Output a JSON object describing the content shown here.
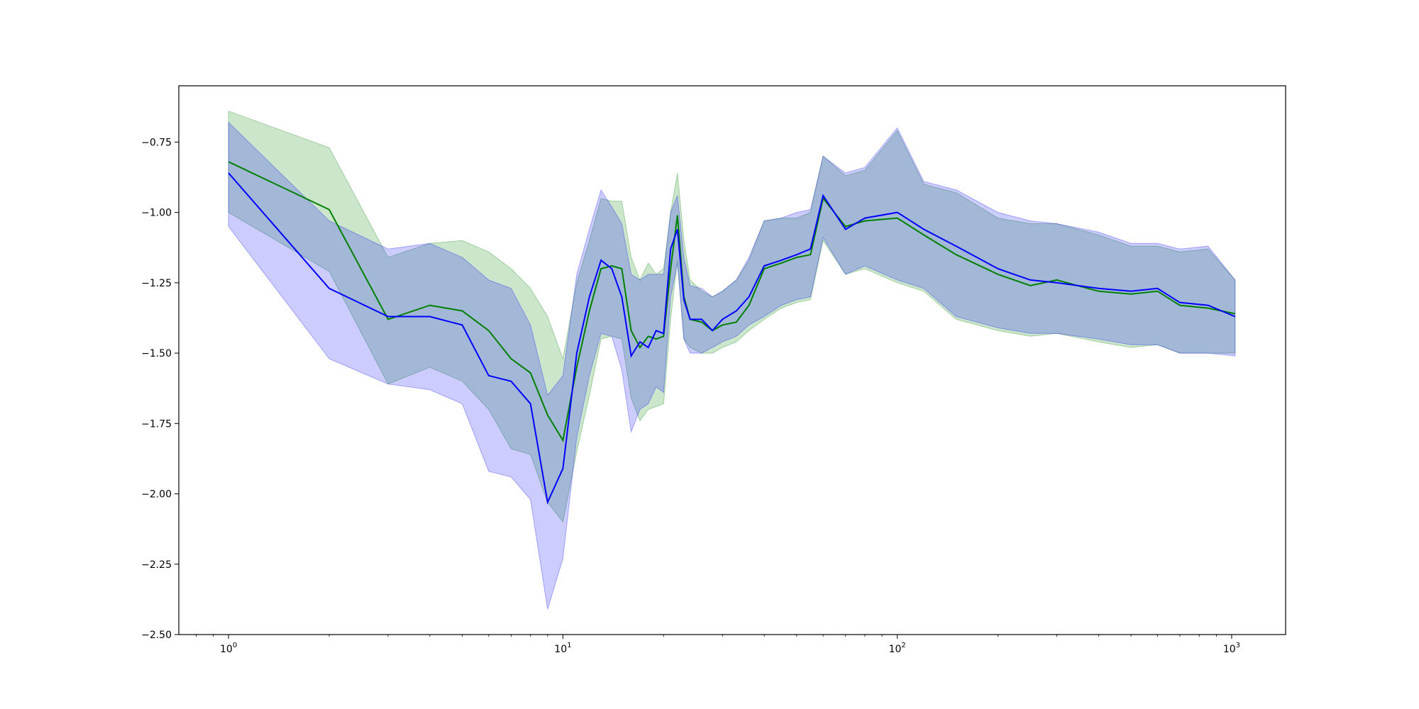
{
  "chart_data": {
    "type": "line",
    "title": "",
    "xlabel": "",
    "ylabel": "",
    "xscale": "log",
    "xlim": [
      0.71,
      1450
    ],
    "ylim": [
      -2.5,
      -0.55
    ],
    "grid": false,
    "legend": "none",
    "x_tick_labels": [
      {
        "value": 1,
        "base": "10",
        "exp": "0"
      },
      {
        "value": 10,
        "base": "10",
        "exp": "1"
      },
      {
        "value": 100,
        "base": "10",
        "exp": "2"
      },
      {
        "value": 1000,
        "base": "10",
        "exp": "3"
      }
    ],
    "y_ticks": [
      -0.75,
      -1.0,
      -1.25,
      -1.5,
      -1.75,
      -2.0,
      -2.25,
      -2.5
    ],
    "y_tick_labels": [
      "−0.75",
      "−1.00",
      "−1.25",
      "−1.50",
      "−1.75",
      "−2.00",
      "−2.25",
      "−2.50"
    ],
    "series": [
      {
        "color": "#008000",
        "band_color": "#008000",
        "band_opacity": 0.2,
        "points": [
          [
            1,
            -0.82
          ],
          [
            2,
            -0.99
          ],
          [
            3,
            -1.38
          ],
          [
            4,
            -1.33
          ],
          [
            5,
            -1.35
          ],
          [
            6,
            -1.42
          ],
          [
            7,
            -1.52
          ],
          [
            8,
            -1.57
          ],
          [
            9,
            -1.72
          ],
          [
            10,
            -1.81
          ],
          [
            11,
            -1.55
          ],
          [
            12,
            -1.35
          ],
          [
            13,
            -1.2
          ],
          [
            14,
            -1.19
          ],
          [
            15,
            -1.2
          ],
          [
            16,
            -1.42
          ],
          [
            17,
            -1.48
          ],
          [
            18,
            -1.44
          ],
          [
            19,
            -1.45
          ],
          [
            20,
            -1.44
          ],
          [
            21,
            -1.2
          ],
          [
            22,
            -1.01
          ],
          [
            23,
            -1.3
          ],
          [
            24,
            -1.38
          ],
          [
            26,
            -1.39
          ],
          [
            28,
            -1.42
          ],
          [
            30,
            -1.4
          ],
          [
            33,
            -1.39
          ],
          [
            36,
            -1.33
          ],
          [
            40,
            -1.2
          ],
          [
            45,
            -1.18
          ],
          [
            50,
            -1.16
          ],
          [
            55,
            -1.15
          ],
          [
            60,
            -0.95
          ],
          [
            70,
            -1.05
          ],
          [
            80,
            -1.03
          ],
          [
            100,
            -1.02
          ],
          [
            120,
            -1.08
          ],
          [
            150,
            -1.15
          ],
          [
            200,
            -1.22
          ],
          [
            250,
            -1.26
          ],
          [
            300,
            -1.24
          ],
          [
            400,
            -1.28
          ],
          [
            500,
            -1.29
          ],
          [
            600,
            -1.28
          ],
          [
            700,
            -1.33
          ],
          [
            850,
            -1.34
          ],
          [
            1024,
            -1.36
          ]
        ],
        "band_upper": [
          [
            1,
            -0.64
          ],
          [
            2,
            -0.77
          ],
          [
            3,
            -1.16
          ],
          [
            4,
            -1.11
          ],
          [
            5,
            -1.1
          ],
          [
            6,
            -1.14
          ],
          [
            7,
            -1.2
          ],
          [
            8,
            -1.27
          ],
          [
            9,
            -1.37
          ],
          [
            10,
            -1.52
          ],
          [
            11,
            -1.25
          ],
          [
            12,
            -1.1
          ],
          [
            13,
            -0.95
          ],
          [
            14,
            -0.96
          ],
          [
            15,
            -0.96
          ],
          [
            16,
            -1.16
          ],
          [
            17,
            -1.24
          ],
          [
            18,
            -1.18
          ],
          [
            19,
            -1.22
          ],
          [
            20,
            -1.2
          ],
          [
            21,
            -1.0
          ],
          [
            22,
            -0.86
          ],
          [
            23,
            -1.1
          ],
          [
            24,
            -1.24
          ],
          [
            26,
            -1.28
          ],
          [
            28,
            -1.3
          ],
          [
            30,
            -1.28
          ],
          [
            33,
            -1.24
          ],
          [
            36,
            -1.17
          ],
          [
            40,
            -1.03
          ],
          [
            45,
            -1.02
          ],
          [
            50,
            -1.02
          ],
          [
            55,
            -1.0
          ],
          [
            60,
            -0.8
          ],
          [
            70,
            -0.87
          ],
          [
            80,
            -0.85
          ],
          [
            100,
            -0.71
          ],
          [
            120,
            -0.9
          ],
          [
            150,
            -0.93
          ],
          [
            200,
            -1.02
          ],
          [
            250,
            -1.04
          ],
          [
            300,
            -1.04
          ],
          [
            400,
            -1.08
          ],
          [
            500,
            -1.12
          ],
          [
            600,
            -1.12
          ],
          [
            700,
            -1.14
          ],
          [
            850,
            -1.13
          ],
          [
            1024,
            -1.24
          ]
        ],
        "band_lower": [
          [
            1,
            -1.0
          ],
          [
            2,
            -1.21
          ],
          [
            3,
            -1.61
          ],
          [
            4,
            -1.55
          ],
          [
            5,
            -1.6
          ],
          [
            6,
            -1.7
          ],
          [
            7,
            -1.84
          ],
          [
            8,
            -1.86
          ],
          [
            9,
            -2.03
          ],
          [
            10,
            -2.1
          ],
          [
            11,
            -1.85
          ],
          [
            12,
            -1.65
          ],
          [
            13,
            -1.45
          ],
          [
            14,
            -1.44
          ],
          [
            15,
            -1.45
          ],
          [
            16,
            -1.66
          ],
          [
            17,
            -1.74
          ],
          [
            18,
            -1.7
          ],
          [
            19,
            -1.69
          ],
          [
            20,
            -1.68
          ],
          [
            21,
            -1.38
          ],
          [
            22,
            -1.17
          ],
          [
            23,
            -1.45
          ],
          [
            24,
            -1.48
          ],
          [
            26,
            -1.5
          ],
          [
            28,
            -1.5
          ],
          [
            30,
            -1.48
          ],
          [
            33,
            -1.46
          ],
          [
            36,
            -1.42
          ],
          [
            40,
            -1.38
          ],
          [
            45,
            -1.34
          ],
          [
            50,
            -1.32
          ],
          [
            55,
            -1.31
          ],
          [
            60,
            -1.1
          ],
          [
            70,
            -1.22
          ],
          [
            80,
            -1.2
          ],
          [
            100,
            -1.25
          ],
          [
            120,
            -1.28
          ],
          [
            150,
            -1.38
          ],
          [
            200,
            -1.42
          ],
          [
            250,
            -1.44
          ],
          [
            300,
            -1.43
          ],
          [
            400,
            -1.46
          ],
          [
            500,
            -1.48
          ],
          [
            600,
            -1.47
          ],
          [
            700,
            -1.5
          ],
          [
            850,
            -1.5
          ],
          [
            1024,
            -1.5
          ]
        ]
      },
      {
        "color": "#0000ff",
        "band_color": "#0000ff",
        "band_opacity": 0.2,
        "points": [
          [
            1,
            -0.86
          ],
          [
            2,
            -1.27
          ],
          [
            3,
            -1.37
          ],
          [
            4,
            -1.37
          ],
          [
            5,
            -1.4
          ],
          [
            6,
            -1.58
          ],
          [
            7,
            -1.6
          ],
          [
            8,
            -1.68
          ],
          [
            9,
            -2.03
          ],
          [
            10,
            -1.91
          ],
          [
            11,
            -1.5
          ],
          [
            12,
            -1.3
          ],
          [
            13,
            -1.17
          ],
          [
            14,
            -1.2
          ],
          [
            15,
            -1.3
          ],
          [
            16,
            -1.51
          ],
          [
            17,
            -1.46
          ],
          [
            18,
            -1.48
          ],
          [
            19,
            -1.42
          ],
          [
            20,
            -1.43
          ],
          [
            21,
            -1.13
          ],
          [
            22,
            -1.06
          ],
          [
            23,
            -1.31
          ],
          [
            24,
            -1.38
          ],
          [
            26,
            -1.38
          ],
          [
            28,
            -1.42
          ],
          [
            30,
            -1.38
          ],
          [
            33,
            -1.35
          ],
          [
            36,
            -1.3
          ],
          [
            40,
            -1.19
          ],
          [
            45,
            -1.17
          ],
          [
            50,
            -1.15
          ],
          [
            55,
            -1.13
          ],
          [
            60,
            -0.94
          ],
          [
            70,
            -1.06
          ],
          [
            80,
            -1.02
          ],
          [
            100,
            -1.0
          ],
          [
            120,
            -1.06
          ],
          [
            150,
            -1.12
          ],
          [
            200,
            -1.2
          ],
          [
            250,
            -1.24
          ],
          [
            300,
            -1.25
          ],
          [
            400,
            -1.27
          ],
          [
            500,
            -1.28
          ],
          [
            600,
            -1.27
          ],
          [
            700,
            -1.32
          ],
          [
            850,
            -1.33
          ],
          [
            1024,
            -1.37
          ]
        ],
        "band_upper": [
          [
            1,
            -0.68
          ],
          [
            2,
            -1.03
          ],
          [
            3,
            -1.13
          ],
          [
            4,
            -1.11
          ],
          [
            5,
            -1.16
          ],
          [
            6,
            -1.24
          ],
          [
            7,
            -1.27
          ],
          [
            8,
            -1.4
          ],
          [
            9,
            -1.65
          ],
          [
            10,
            -1.58
          ],
          [
            11,
            -1.22
          ],
          [
            12,
            -1.06
          ],
          [
            13,
            -0.92
          ],
          [
            14,
            -0.98
          ],
          [
            15,
            -1.04
          ],
          [
            16,
            -1.22
          ],
          [
            17,
            -1.24
          ],
          [
            18,
            -1.22
          ],
          [
            19,
            -1.22
          ],
          [
            20,
            -1.22
          ],
          [
            21,
            -1.0
          ],
          [
            22,
            -0.94
          ],
          [
            23,
            -1.16
          ],
          [
            24,
            -1.26
          ],
          [
            26,
            -1.27
          ],
          [
            28,
            -1.3
          ],
          [
            30,
            -1.28
          ],
          [
            33,
            -1.24
          ],
          [
            36,
            -1.16
          ],
          [
            40,
            -1.03
          ],
          [
            45,
            -1.02
          ],
          [
            50,
            -1.0
          ],
          [
            55,
            -0.99
          ],
          [
            60,
            -0.8
          ],
          [
            70,
            -0.86
          ],
          [
            80,
            -0.84
          ],
          [
            100,
            -0.7
          ],
          [
            120,
            -0.89
          ],
          [
            150,
            -0.92
          ],
          [
            200,
            -1.0
          ],
          [
            250,
            -1.03
          ],
          [
            300,
            -1.04
          ],
          [
            400,
            -1.07
          ],
          [
            500,
            -1.11
          ],
          [
            600,
            -1.11
          ],
          [
            700,
            -1.13
          ],
          [
            850,
            -1.12
          ],
          [
            1024,
            -1.24
          ]
        ],
        "band_lower": [
          [
            1,
            -1.05
          ],
          [
            2,
            -1.52
          ],
          [
            3,
            -1.61
          ],
          [
            4,
            -1.63
          ],
          [
            5,
            -1.68
          ],
          [
            6,
            -1.92
          ],
          [
            7,
            -1.94
          ],
          [
            8,
            -2.02
          ],
          [
            9,
            -2.41
          ],
          [
            10,
            -2.23
          ],
          [
            11,
            -1.8
          ],
          [
            12,
            -1.58
          ],
          [
            13,
            -1.43
          ],
          [
            14,
            -1.44
          ],
          [
            15,
            -1.56
          ],
          [
            16,
            -1.78
          ],
          [
            17,
            -1.7
          ],
          [
            18,
            -1.68
          ],
          [
            19,
            -1.62
          ],
          [
            20,
            -1.64
          ],
          [
            21,
            -1.3
          ],
          [
            22,
            -1.18
          ],
          [
            23,
            -1.45
          ],
          [
            24,
            -1.5
          ],
          [
            26,
            -1.5
          ],
          [
            28,
            -1.48
          ],
          [
            30,
            -1.46
          ],
          [
            33,
            -1.44
          ],
          [
            36,
            -1.4
          ],
          [
            40,
            -1.37
          ],
          [
            45,
            -1.33
          ],
          [
            50,
            -1.31
          ],
          [
            55,
            -1.3
          ],
          [
            60,
            -1.09
          ],
          [
            70,
            -1.22
          ],
          [
            80,
            -1.19
          ],
          [
            100,
            -1.24
          ],
          [
            120,
            -1.27
          ],
          [
            150,
            -1.37
          ],
          [
            200,
            -1.41
          ],
          [
            250,
            -1.43
          ],
          [
            300,
            -1.43
          ],
          [
            400,
            -1.45
          ],
          [
            500,
            -1.47
          ],
          [
            600,
            -1.47
          ],
          [
            700,
            -1.5
          ],
          [
            850,
            -1.5
          ],
          [
            1024,
            -1.51
          ]
        ]
      }
    ]
  }
}
